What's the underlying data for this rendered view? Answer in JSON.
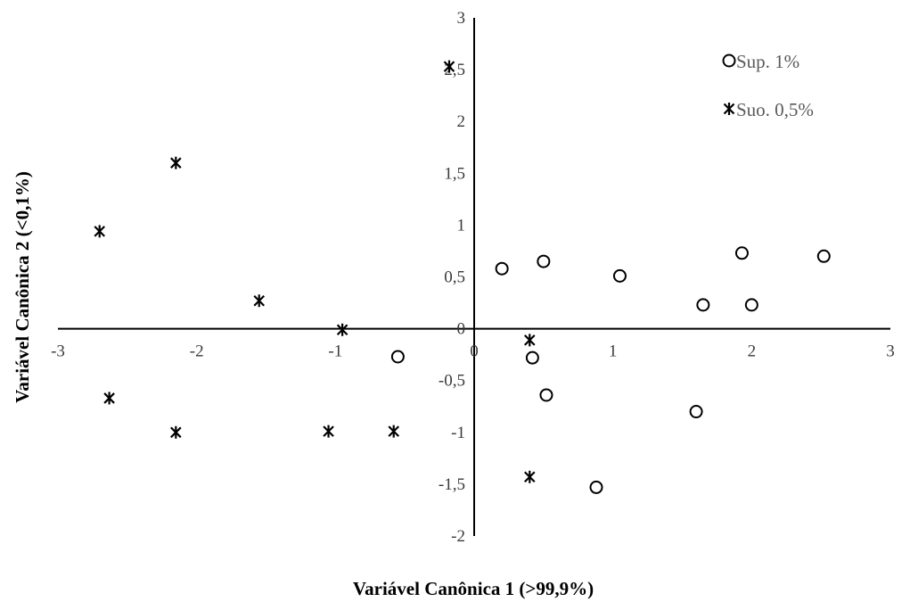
{
  "chart_data": {
    "type": "scatter",
    "xlabel": "Variável Canônica 1 (>99,9%)",
    "ylabel": "Variável Canônica 2 (<0,1%)",
    "xlim": [
      -3,
      3
    ],
    "ylim": [
      -2,
      3
    ],
    "x_ticks": [
      -3,
      -2,
      -1,
      0,
      1,
      2,
      3
    ],
    "x_tick_labels": [
      "-3",
      "-2",
      "-1",
      "0",
      "1",
      "2",
      "3"
    ],
    "y_ticks": [
      3,
      2.5,
      2,
      1.5,
      1,
      0.5,
      0,
      -0.5,
      -1,
      -1.5,
      -2
    ],
    "y_tick_labels": [
      "3",
      "2,5",
      "2",
      "1,5",
      "1",
      "0,5",
      "0",
      "-0,5",
      "-1",
      "-1,5",
      "-2"
    ],
    "grid": false,
    "legend_position": "top-right",
    "series": [
      {
        "name": "Sup. 1%",
        "marker": "circle",
        "color": "#000000",
        "points": [
          {
            "x": 0.2,
            "y": 0.58
          },
          {
            "x": 0.5,
            "y": 0.65
          },
          {
            "x": 1.05,
            "y": 0.51
          },
          {
            "x": 1.65,
            "y": 0.23
          },
          {
            "x": 1.93,
            "y": 0.73
          },
          {
            "x": 2.0,
            "y": 0.23
          },
          {
            "x": 2.52,
            "y": 0.7
          },
          {
            "x": -0.55,
            "y": -0.27
          },
          {
            "x": 0.42,
            "y": -0.28
          },
          {
            "x": 0.52,
            "y": -0.64
          },
          {
            "x": 1.6,
            "y": -0.8
          },
          {
            "x": 0.88,
            "y": -1.53
          }
        ]
      },
      {
        "name": "Suo. 0,5%",
        "marker": "asterisk",
        "color": "#000000",
        "points": [
          {
            "x": -0.18,
            "y": 2.53
          },
          {
            "x": -2.15,
            "y": 1.6
          },
          {
            "x": -2.7,
            "y": 0.94
          },
          {
            "x": -1.55,
            "y": 0.27
          },
          {
            "x": -0.95,
            "y": -0.01
          },
          {
            "x": 0.4,
            "y": -0.11
          },
          {
            "x": -2.63,
            "y": -0.67
          },
          {
            "x": -2.15,
            "y": -1.0
          },
          {
            "x": -1.05,
            "y": -0.99
          },
          {
            "x": -0.58,
            "y": -0.99
          },
          {
            "x": 0.4,
            "y": -1.43
          }
        ]
      }
    ]
  }
}
